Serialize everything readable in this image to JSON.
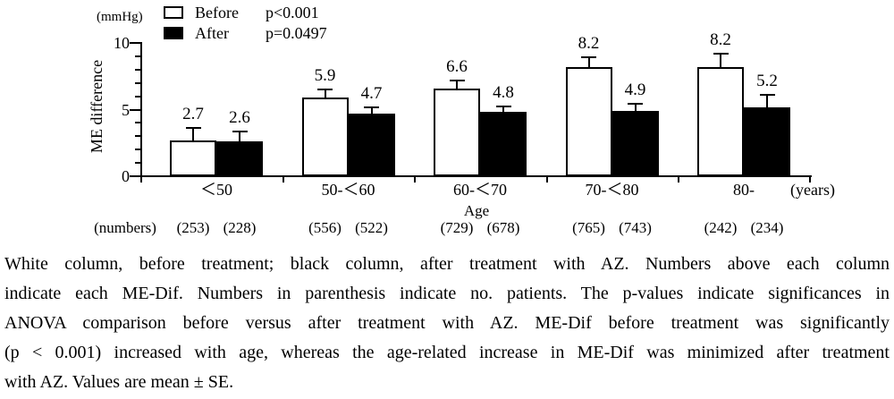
{
  "figure": {
    "legend": {
      "before_label": "Before",
      "after_label": "After",
      "p_before": "p<0.001",
      "p_after": "p=0.0497",
      "before_color": "#ffffff",
      "after_color": "#000000"
    },
    "axes": {
      "y_unit": "(mmHg)",
      "ylabel": "ME difference",
      "xlabel": "Age",
      "x_unit": "(years)",
      "numbers_prefix": "(numbers)"
    }
  },
  "chart_data": {
    "type": "bar",
    "title": "",
    "ylabel": "ME difference",
    "y_unit": "mmHg",
    "xlabel": "Age",
    "x_unit": "years",
    "ylim": [
      0,
      10
    ],
    "yticks_major": [
      0,
      5,
      10
    ],
    "ytick_minor_step": 1,
    "grid": false,
    "legend_position": "top-left",
    "error_bars": "upper SE whisker",
    "categories": [
      "＜50",
      "50-＜60",
      "60-＜70",
      "70-＜80",
      "80-"
    ],
    "series": [
      {
        "name": "Before",
        "fill": "#ffffff",
        "values": [
          2.7,
          5.9,
          6.6,
          8.2,
          8.2
        ],
        "se": [
          0.9,
          0.6,
          0.55,
          0.7,
          1.0
        ],
        "n_patients": [
          253,
          556,
          729,
          765,
          242
        ],
        "p_value": "p<0.001"
      },
      {
        "name": "After",
        "fill": "#000000",
        "values": [
          2.6,
          4.7,
          4.8,
          4.9,
          5.2
        ],
        "se": [
          0.75,
          0.5,
          0.45,
          0.55,
          0.9
        ],
        "n_patients": [
          228,
          522,
          678,
          743,
          234
        ],
        "p_value": "p=0.0497"
      }
    ]
  },
  "caption": {
    "lines": [
      "White column, before treatment; black column, after treatment with AZ. Numbers above each column",
      "indicate each ME-Dif. Numbers in parenthesis indicate no. patients. The p-values indicate significances in",
      "ANOVA comparison before versus after treatment with AZ. ME-Dif before treatment was significantly",
      "(p < 0.001) increased with age, whereas the age-related increase in ME-Dif was minimized after treatment",
      "with AZ. Values are mean ± SE."
    ]
  }
}
